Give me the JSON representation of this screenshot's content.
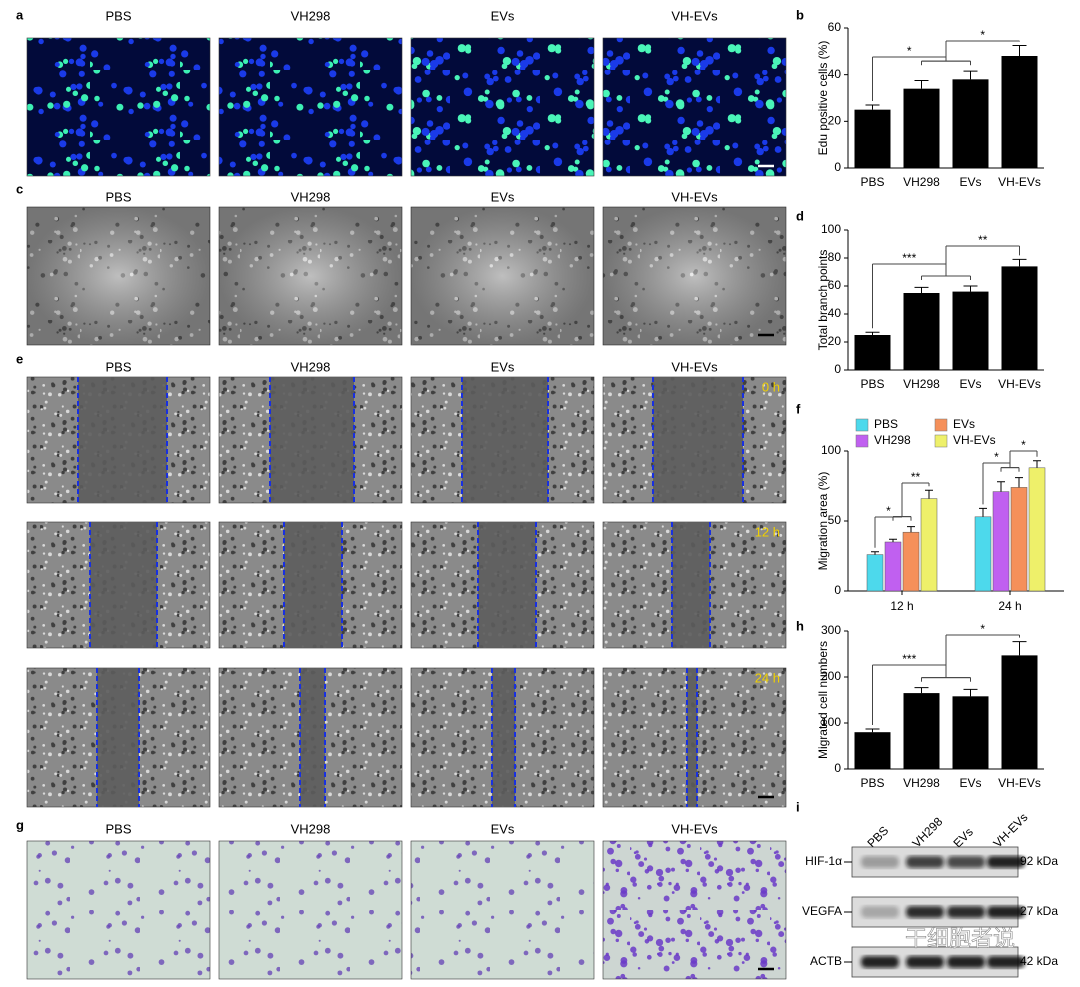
{
  "image_panels": [
    {
      "label": "a",
      "columns": [
        "PBS",
        "VH298",
        "EVs",
        "VH-EVs"
      ]
    },
    {
      "label": "c",
      "columns": [
        "PBS",
        "VH298",
        "EVs",
        "VH-EVs"
      ]
    },
    {
      "label": "e",
      "columns": [
        "PBS",
        "VH298",
        "EVs",
        "VH-EVs"
      ],
      "times": [
        "0 h",
        "12 h",
        "24 h"
      ]
    },
    {
      "label": "g",
      "columns": [
        "PBS",
        "VH298",
        "EVs",
        "VH-EVs"
      ]
    }
  ],
  "chart_data": [
    {
      "type": "bar",
      "panel": "b",
      "ylabel": "Edu positive cells (%)",
      "categories": [
        "PBS",
        "VH298",
        "EVs",
        "VH-EVs"
      ],
      "values": [
        25,
        34,
        38,
        48
      ],
      "errors": [
        2,
        3.5,
        3.5,
        4.5
      ],
      "color": "#000000",
      "ylim": [
        0,
        60
      ],
      "yticks": [
        0,
        20,
        40,
        60
      ],
      "significance": [
        "*",
        "*"
      ]
    },
    {
      "type": "bar",
      "panel": "d",
      "ylabel": "Total branch points",
      "categories": [
        "PBS",
        "VH298",
        "EVs",
        "VH-EVs"
      ],
      "values": [
        25,
        55,
        56,
        74
      ],
      "errors": [
        2,
        4,
        4,
        5
      ],
      "color": "#000000",
      "ylim": [
        0,
        100
      ],
      "yticks": [
        0,
        20,
        40,
        60,
        80,
        100
      ],
      "significance": [
        "***",
        "**"
      ]
    },
    {
      "type": "grouped_bar",
      "panel": "f",
      "ylabel": "Migration area (%)",
      "categories": [
        "12 h",
        "24 h"
      ],
      "series": [
        {
          "name": "PBS",
          "color": "#4dd9ec",
          "values": [
            26,
            53
          ],
          "errors": [
            2,
            6
          ]
        },
        {
          "name": "VH298",
          "color": "#c060f0",
          "values": [
            35,
            71
          ],
          "errors": [
            2,
            7
          ]
        },
        {
          "name": "EVs",
          "color": "#f5905a",
          "values": [
            42,
            74
          ],
          "errors": [
            4,
            7
          ]
        },
        {
          "name": "VH-EVs",
          "color": "#eef06a",
          "values": [
            66,
            88
          ],
          "errors": [
            6,
            5
          ]
        }
      ],
      "ylim": [
        0,
        100
      ],
      "yticks": [
        0,
        50,
        100
      ],
      "significance": [
        [
          "*",
          "**"
        ],
        [
          "*",
          "*"
        ]
      ]
    },
    {
      "type": "bar",
      "panel": "h",
      "ylabel": "Migrated cell numbers",
      "categories": [
        "PBS",
        "VH298",
        "EVs",
        "VH-EVs"
      ],
      "values": [
        80,
        165,
        158,
        247
      ],
      "errors": [
        7,
        12,
        15,
        30
      ],
      "color": "#000000",
      "ylim": [
        0,
        300
      ],
      "yticks": [
        0,
        100,
        200,
        300
      ],
      "significance": [
        "***",
        "*"
      ]
    }
  ],
  "blot": {
    "label": "i",
    "lanes": [
      "PBS",
      "VH298",
      "EVs",
      "VH-EVs"
    ],
    "proteins": [
      "HIF-1α",
      "VEGFA",
      "ACTB"
    ],
    "sizes": [
      "92 kDa",
      "27 kDa",
      "42 kDa"
    ]
  },
  "watermark": "干细胞者说"
}
